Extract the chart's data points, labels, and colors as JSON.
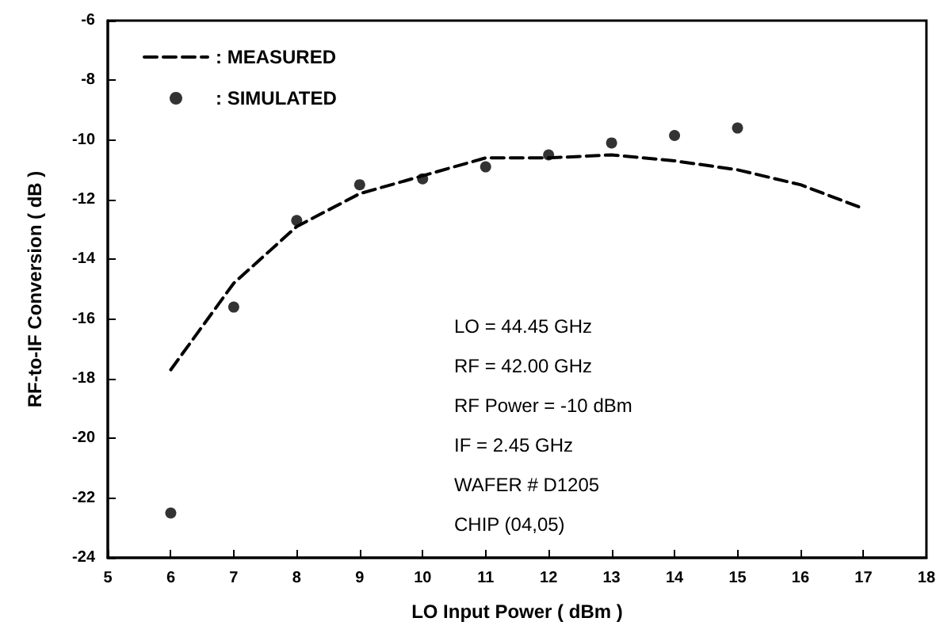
{
  "chart_data": {
    "type": "line",
    "xlabel": "LO Input Power ( dBm )",
    "ylabel": "RF-to-IF Conversion ( dB )",
    "xlim": [
      5,
      18
    ],
    "xticks": [
      5,
      6,
      7,
      8,
      9,
      10,
      11,
      12,
      13,
      14,
      15,
      16,
      17,
      18
    ],
    "ylim": [
      -24,
      -6
    ],
    "yticks": [
      -24,
      -22,
      -20,
      -18,
      -16,
      -14,
      -12,
      -10,
      -8,
      -6
    ],
    "grid": false,
    "legend": "top left",
    "series": [
      {
        "name": ": MEASURED",
        "line_style": "dashed",
        "marker": "none",
        "color": "#000000",
        "x": [
          6,
          7,
          8,
          9,
          10,
          11,
          12,
          13,
          14,
          15,
          16,
          17
        ],
        "values": [
          -17.7,
          -14.8,
          -12.9,
          -11.8,
          -11.2,
          -10.6,
          -10.6,
          -10.5,
          -10.7,
          -11.0,
          -11.5,
          -12.3
        ]
      },
      {
        "name": ": SIMULATED",
        "type": "scatter",
        "marker": "circle",
        "color": "#000000",
        "x": [
          6,
          7,
          8,
          9,
          10,
          11,
          12,
          13,
          14,
          15
        ],
        "values": [
          -22.5,
          -15.6,
          -12.7,
          -11.5,
          -11.3,
          -10.9,
          -10.5,
          -10.1,
          -9.85,
          -9.6
        ]
      }
    ],
    "annotations": [
      "LO = 44.45 GHz",
      "RF = 42.00 GHz",
      "RF Power = -10 dBm",
      "IF = 2.45 GHz",
      "WAFER # D1205",
      "CHIP (04,05)"
    ]
  }
}
